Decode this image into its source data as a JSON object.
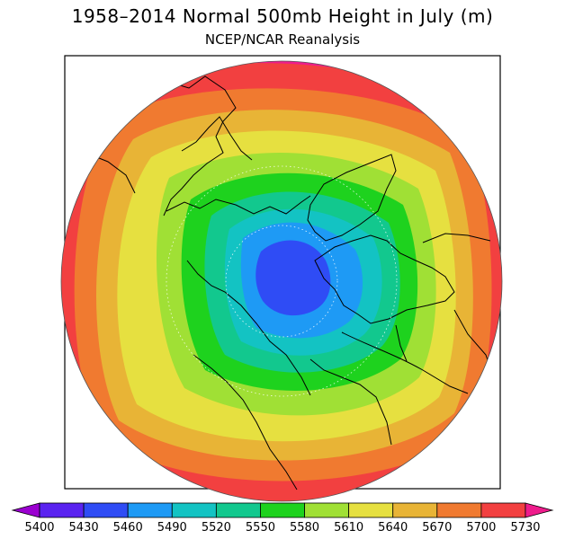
{
  "title": "1958–2014 Normal 500mb Height in July (m)",
  "subtitle": "NCEP/NCAR Reanalysis",
  "map": {
    "projection": "polar-stereographic",
    "region": "Northern Hemisphere",
    "field": "500mb geopotential height"
  },
  "colorbar": {
    "labels": [
      "5400",
      "5430",
      "5460",
      "5490",
      "5520",
      "5550",
      "5580",
      "5610",
      "5640",
      "5670",
      "5700",
      "5730"
    ],
    "colors": [
      "#9b00d0",
      "#5a23f0",
      "#2f4cf5",
      "#1e9af5",
      "#13c3c3",
      "#12c88e",
      "#1ed21e",
      "#a0e035",
      "#e6e040",
      "#e8b436",
      "#f07a30",
      "#f24040",
      "#ee1c8c"
    ],
    "extends": "both"
  },
  "bands": [
    {
      "level": "5730+",
      "color": "#ee1c8c"
    },
    {
      "level": "5700",
      "color": "#f24040"
    },
    {
      "level": "5670",
      "color": "#f07a30"
    },
    {
      "level": "5640",
      "color": "#e8b436"
    },
    {
      "level": "5610",
      "color": "#e6e040"
    },
    {
      "level": "5580",
      "color": "#a0e035"
    },
    {
      "level": "5550",
      "color": "#1ed21e"
    },
    {
      "level": "5520",
      "color": "#12c88e"
    },
    {
      "level": "5490",
      "color": "#13c3c3"
    },
    {
      "level": "5460",
      "color": "#1e9af5"
    },
    {
      "level": "5430",
      "color": "#2f4cf5"
    }
  ]
}
